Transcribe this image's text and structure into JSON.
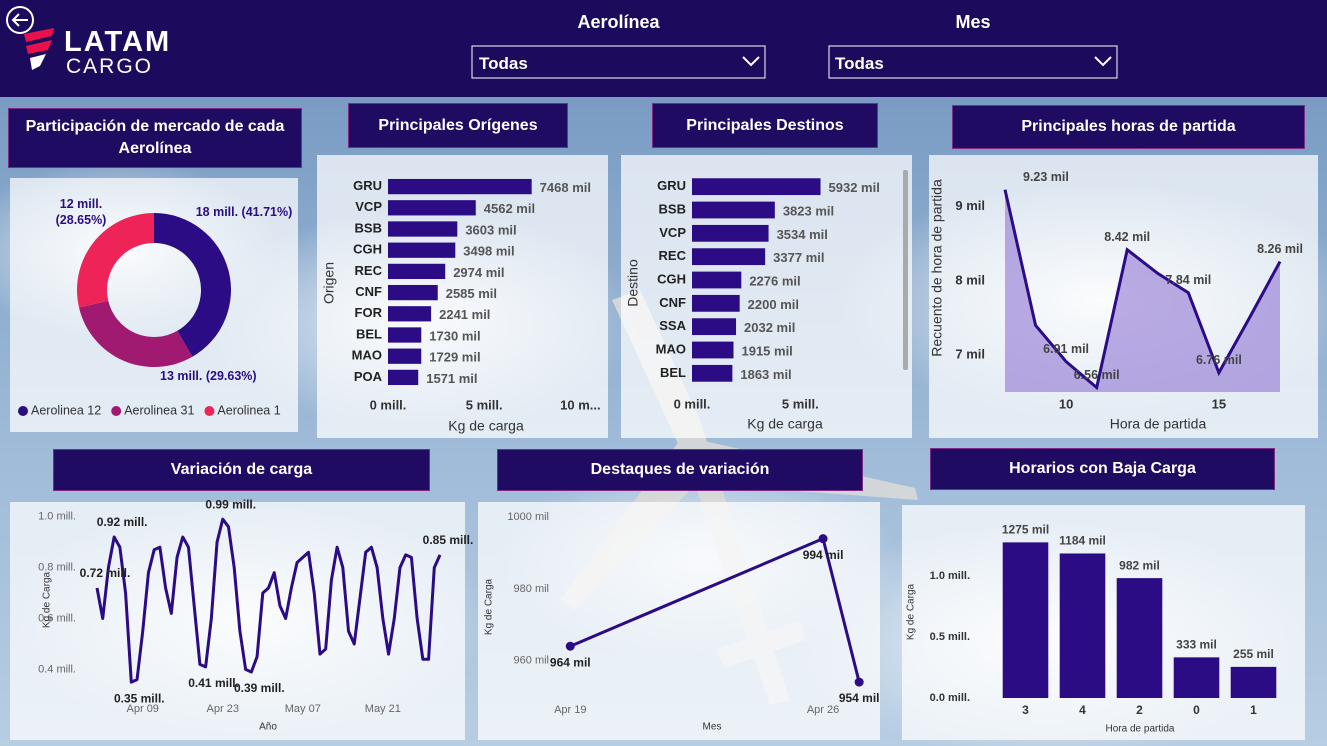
{
  "header": {
    "logo_line1": "LATAM",
    "logo_line2": "CARGO"
  },
  "filters": [
    {
      "label": "Aerolínea",
      "value": "Todas"
    },
    {
      "label": "Mes",
      "value": "Todas"
    }
  ],
  "chart_data": [
    {
      "type": "donut",
      "title": "Participación de mercado de cada Aerolínea",
      "categories": [
        "Aerolinea 12",
        "Aerolinea 31",
        "Aerolinea 1"
      ],
      "values": [
        41.71,
        29.63,
        28.65
      ],
      "value_labels": [
        "18 mill. (41.71%)",
        "13 mill. (29.63%)",
        "12 mill. (28.65%)"
      ],
      "colors": [
        "#2b0c84",
        "#a01a72",
        "#ee2459"
      ],
      "legend": "bottom"
    },
    {
      "type": "hbar",
      "title": "Principales Orígenes",
      "x_label": "Kg de carga",
      "y_label": "Origen",
      "categories": [
        "GRU",
        "VCP",
        "BSB",
        "CGH",
        "REC",
        "CNF",
        "FOR",
        "BEL",
        "MAO",
        "POA"
      ],
      "values": [
        7.468,
        4.562,
        3.603,
        3.498,
        2.974,
        2.585,
        2.241,
        1.73,
        1.729,
        1.571
      ],
      "value_labels": [
        "7468 mil",
        "4562 mil",
        "3603 mil",
        "3498 mil",
        "2974 mil",
        "2585 mil",
        "2241 mil",
        "1730 mil",
        "1729 mil",
        "1571 mil"
      ],
      "color": "#2b0c84",
      "xlim": [
        0,
        10.5
      ],
      "xticks": [
        {
          "value": 0,
          "label": "0 mill."
        },
        {
          "value": 5,
          "label": "5 mill."
        },
        {
          "value": 10,
          "label": "10 m..."
        }
      ]
    },
    {
      "type": "hbar",
      "title": "Principales Destinos",
      "x_label": "Kg de carga",
      "y_label": "Destino",
      "categories": [
        "GRU",
        "BSB",
        "VCP",
        "REC",
        "CGH",
        "CNF",
        "SSA",
        "MAO",
        "BEL"
      ],
      "values": [
        5.932,
        3.823,
        3.534,
        3.377,
        2.276,
        2.2,
        2.032,
        1.915,
        1.863
      ],
      "value_labels": [
        "5932 mil",
        "3823 mil",
        "3534 mil",
        "3377 mil",
        "2276 mil",
        "2200 mil",
        "2032 mil",
        "1915 mil",
        "1863 mil"
      ],
      "color": "#2b0c84",
      "xlim": [
        0,
        9.6
      ],
      "xticks": [
        {
          "value": 0,
          "label": "0 mill."
        },
        {
          "value": 5,
          "label": "5 mill."
        }
      ]
    },
    {
      "type": "area",
      "title": "Principales horas de partida",
      "x_label": "Hora de partida",
      "y_label": "Recuento de hora de partida",
      "x": [
        8,
        9,
        10,
        11,
        12,
        13,
        14,
        15,
        16,
        17
      ],
      "values": [
        9.23,
        7.4,
        6.91,
        6.56,
        8.42,
        8.1,
        7.84,
        6.76,
        7.5,
        8.26
      ],
      "value_labels": [
        "9.23 mil",
        null,
        "6.91 mil",
        "6.56 mil",
        "8.42 mil",
        null,
        "7.84 mil",
        "6.76 mil",
        null,
        "8.26 mil"
      ],
      "color": "#2b0c84",
      "fill_color": "#8f74d2",
      "xlim": [
        8,
        17
      ],
      "xticks": [
        10,
        15
      ],
      "ylim": [
        6.5,
        9.55
      ],
      "yticks": [
        {
          "value": 7,
          "label": "7 mil"
        },
        {
          "value": 8,
          "label": "8 mil"
        },
        {
          "value": 9,
          "label": "9 mil"
        }
      ]
    },
    {
      "type": "line",
      "title": "Variación de carga",
      "x_label": "Año",
      "y_label": "Kg de Carga",
      "categories": [
        null,
        null,
        null,
        null,
        null,
        null,
        null,
        null,
        "Apr 09",
        null,
        null,
        null,
        null,
        null,
        null,
        null,
        null,
        null,
        null,
        null,
        null,
        null,
        "Apr 23",
        null,
        null,
        null,
        null,
        null,
        null,
        null,
        null,
        null,
        null,
        null,
        null,
        null,
        "May 07",
        null,
        null,
        null,
        null,
        null,
        null,
        null,
        null,
        null,
        null,
        null,
        null,
        null,
        "May 21",
        null,
        null,
        null,
        null,
        null,
        null,
        null,
        null,
        null,
        null
      ],
      "values": [
        0.72,
        0.6,
        0.8,
        0.92,
        0.88,
        0.7,
        0.35,
        0.36,
        0.55,
        0.78,
        0.87,
        0.88,
        0.72,
        0.62,
        0.84,
        0.92,
        0.88,
        0.65,
        0.42,
        0.41,
        0.6,
        0.9,
        0.99,
        0.96,
        0.8,
        0.55,
        0.4,
        0.39,
        0.45,
        0.7,
        0.72,
        0.78,
        0.65,
        0.6,
        0.72,
        0.82,
        0.84,
        0.86,
        0.7,
        0.46,
        0.48,
        0.75,
        0.88,
        0.8,
        0.55,
        0.5,
        0.68,
        0.86,
        0.88,
        0.8,
        0.6,
        0.46,
        0.6,
        0.8,
        0.85,
        0.84,
        0.6,
        0.44,
        0.44,
        0.8,
        0.85
      ],
      "value_labels": [
        "0.72 mill.",
        null,
        null,
        "0.92 mill.",
        null,
        null,
        "0.35 mill.",
        null,
        null,
        null,
        null,
        null,
        null,
        null,
        null,
        null,
        null,
        null,
        null,
        "0.41 mill.",
        null,
        null,
        "0.99 mill.",
        null,
        null,
        null,
        null,
        "0.39 mill.",
        null,
        null,
        null,
        null,
        null,
        null,
        null,
        null,
        null,
        null,
        null,
        null,
        null,
        null,
        null,
        null,
        null,
        null,
        null,
        null,
        null,
        null,
        null,
        null,
        null,
        null,
        null,
        null,
        null,
        null,
        null,
        null,
        "0.85 mill."
      ],
      "color": "#2b0c84",
      "ylim": [
        0.28,
        1.03
      ],
      "yticks": [
        {
          "value": 0.4,
          "label": "0.4 mill."
        },
        {
          "value": 0.6,
          "label": "0.6 mill."
        },
        {
          "value": 0.8,
          "label": "0.8 mill."
        },
        {
          "value": 1.0,
          "label": "1.0 mill."
        }
      ]
    },
    {
      "type": "line",
      "title": "Destaques de variación",
      "x_label": "Mes",
      "y_label": "Kg de Carga",
      "x": [
        19,
        26,
        27
      ],
      "values": [
        964,
        994,
        954
      ],
      "value_labels": [
        "964 mil",
        "994 mil",
        "954 mil"
      ],
      "color": "#2b0c84",
      "markers": true,
      "xlim": [
        16.5,
        27.3
      ],
      "xticks": [
        {
          "value": 19,
          "label": "Apr 19"
        },
        {
          "value": 26,
          "label": "Apr 26"
        }
      ],
      "ylim": [
        949,
        1002
      ],
      "yticks": [
        {
          "value": 960,
          "label": "960 mil"
        },
        {
          "value": 980,
          "label": "980 mil"
        },
        {
          "value": 1000,
          "label": "1000 mil"
        }
      ]
    },
    {
      "type": "bar",
      "title": "Horarios con Baja Carga",
      "x_label": "Hora de partida",
      "y_label": "Kg de Carga",
      "categories": [
        "3",
        "4",
        "2",
        "0",
        "1"
      ],
      "values": [
        1.275,
        1.184,
        0.982,
        0.333,
        0.255
      ],
      "value_labels": [
        "1275 mil",
        "1184 mil",
        "982 mil",
        "333 mil",
        "255 mil"
      ],
      "color": "#2b0c84",
      "ylim": [
        0,
        1.45
      ],
      "yticks": [
        {
          "value": 0,
          "label": "0.0 mill."
        },
        {
          "value": 0.5,
          "label": "0.5 mill."
        },
        {
          "value": 1.0,
          "label": "1.0 mill."
        }
      ]
    }
  ]
}
